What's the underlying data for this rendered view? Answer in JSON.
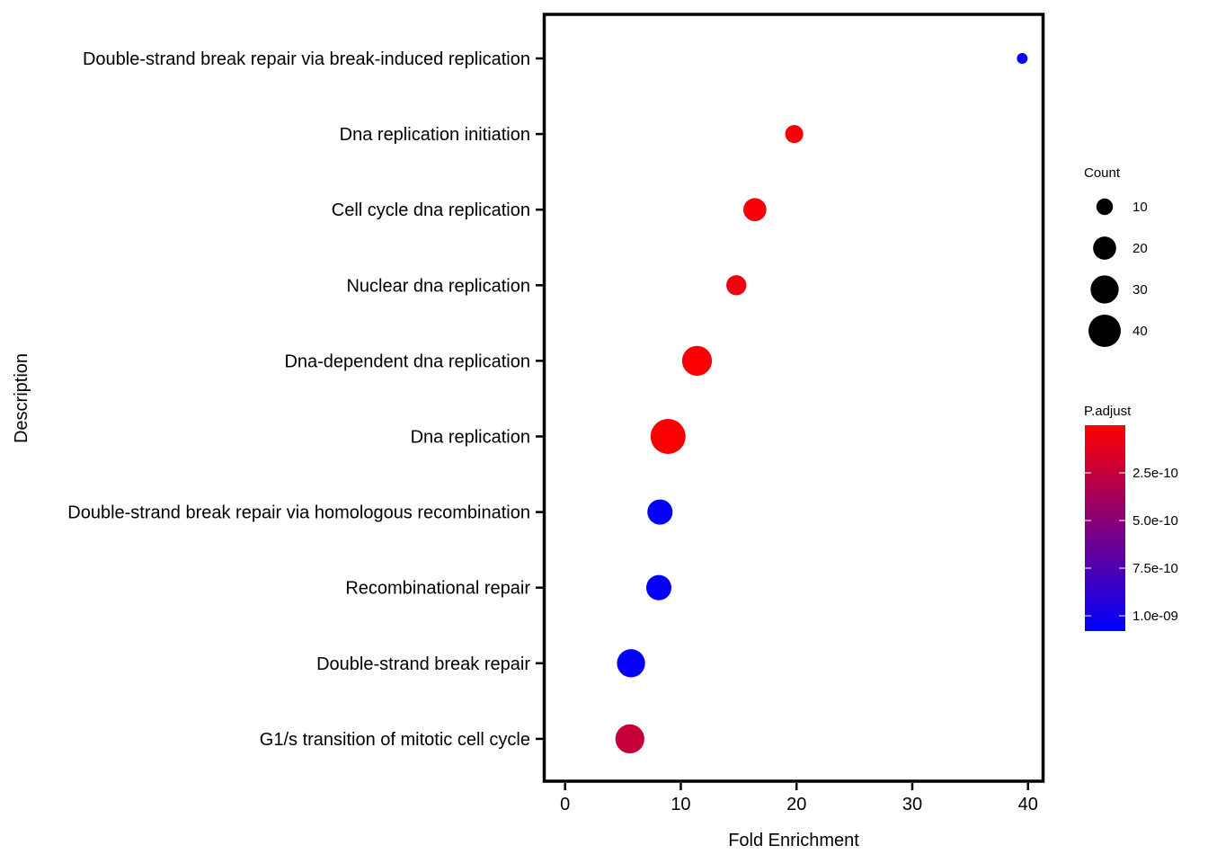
{
  "chart_data": {
    "type": "scatter",
    "xlabel": "Fold Enrichment",
    "ylabel": "Description",
    "xlim": [
      -1.8,
      41.3
    ],
    "x_ticks": [
      0,
      10,
      20,
      30,
      40
    ],
    "x_tick_labels": [
      "0",
      "10",
      "20",
      "30",
      "40"
    ],
    "grid": false,
    "legend_position": "right",
    "points": [
      {
        "category": "Double-strand break repair via break-induced replication",
        "fold_enrichment": 39.5,
        "count": 4,
        "p_adjust": 1.06e-09
      },
      {
        "category": "Dna replication initiation",
        "fold_enrichment": 19.8,
        "count": 12,
        "p_adjust": 3e-11
      },
      {
        "category": "Cell cycle dna replication",
        "fold_enrichment": 16.4,
        "count": 20,
        "p_adjust": 3e-11
      },
      {
        "category": "Nuclear dna replication",
        "fold_enrichment": 14.8,
        "count": 15,
        "p_adjust": 6e-11
      },
      {
        "category": "Dna-dependent dna replication",
        "fold_enrichment": 11.4,
        "count": 34,
        "p_adjust": 2e-11
      },
      {
        "category": "Dna replication",
        "fold_enrichment": 8.9,
        "count": 47,
        "p_adjust": 2e-11
      },
      {
        "category": "Double-strand break repair via homologous recombination",
        "fold_enrichment": 8.2,
        "count": 24,
        "p_adjust": 1.06e-09
      },
      {
        "category": "Recombinational repair",
        "fold_enrichment": 8.1,
        "count": 24,
        "p_adjust": 1.06e-09
      },
      {
        "category": "Double-strand break repair",
        "fold_enrichment": 5.7,
        "count": 30,
        "p_adjust": 1.06e-09
      },
      {
        "category": "G1/s transition of mitotic cell cycle",
        "fold_enrichment": 5.6,
        "count": 32,
        "p_adjust": 2.4e-10
      }
    ],
    "size_legend": {
      "title": "Count",
      "values": [
        10,
        20,
        30,
        40
      ],
      "labels": [
        "10",
        "20",
        "30",
        "40"
      ]
    },
    "color_legend": {
      "title": "P.adjust",
      "low_color": "#ff0000",
      "high_color": "#0000ff",
      "range": [
        0,
        1.08e-09
      ],
      "ticks": [
        2.5e-10,
        5e-10,
        7.5e-10,
        1e-09
      ],
      "tick_labels": [
        "2.5e-10",
        "5.0e-10",
        "7.5e-10",
        "1.0e-09"
      ]
    }
  }
}
